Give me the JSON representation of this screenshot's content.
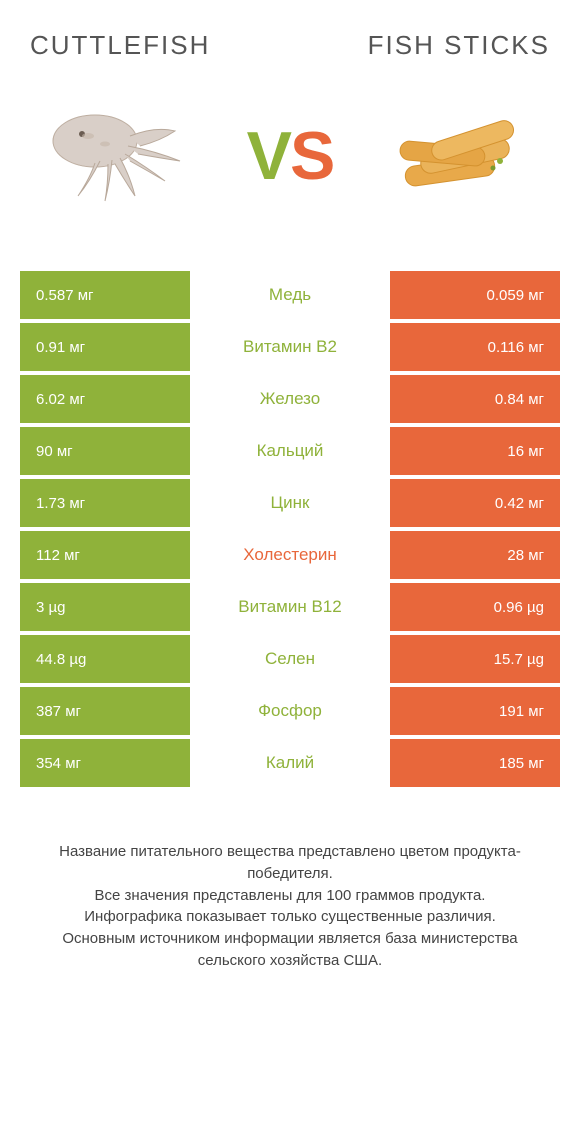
{
  "colors": {
    "left": "#8fb23a",
    "right": "#e8673b",
    "title": "#555555",
    "footer": "#444444",
    "background": "#ffffff"
  },
  "typography": {
    "title_fontsize": 26,
    "vs_fontsize": 68,
    "cell_fontsize": 15,
    "nutrient_fontsize": 17,
    "footer_fontsize": 15
  },
  "header": {
    "left_title": "CUTTLEFISH",
    "right_title": "FISH STICKS",
    "vs_v": "V",
    "vs_s": "S"
  },
  "layout": {
    "left_widths": [
      170,
      170,
      170,
      170,
      170,
      170,
      170,
      170,
      170,
      170
    ],
    "right_widths": [
      170,
      170,
      170,
      170,
      170,
      170,
      170,
      170,
      170,
      170
    ]
  },
  "table": {
    "rows": [
      {
        "left": "0.587 мг",
        "label": "Медь",
        "right": "0.059 мг",
        "winner": "left"
      },
      {
        "left": "0.91 мг",
        "label": "Витамин B2",
        "right": "0.116 мг",
        "winner": "left"
      },
      {
        "left": "6.02 мг",
        "label": "Железо",
        "right": "0.84 мг",
        "winner": "left"
      },
      {
        "left": "90 мг",
        "label": "Кальций",
        "right": "16 мг",
        "winner": "left"
      },
      {
        "left": "1.73 мг",
        "label": "Цинк",
        "right": "0.42 мг",
        "winner": "left"
      },
      {
        "left": "112 мг",
        "label": "Холестерин",
        "right": "28 мг",
        "winner": "right"
      },
      {
        "left": "3 µg",
        "label": "Витамин B12",
        "right": "0.96 µg",
        "winner": "left"
      },
      {
        "left": "44.8 µg",
        "label": "Селен",
        "right": "15.7 µg",
        "winner": "left"
      },
      {
        "left": "387 мг",
        "label": "Фосфор",
        "right": "191 мг",
        "winner": "left"
      },
      {
        "left": "354 мг",
        "label": "Калий",
        "right": "185 мг",
        "winner": "left"
      }
    ]
  },
  "footer": {
    "line1": "Название питательного вещества представлено цветом продукта-победителя.",
    "line2": "Все значения представлены для 100 граммов продукта.",
    "line3": "Инфографика показывает только существенные различия.",
    "line4": "Основным источником информации является база министерства сельского хозяйства США."
  }
}
